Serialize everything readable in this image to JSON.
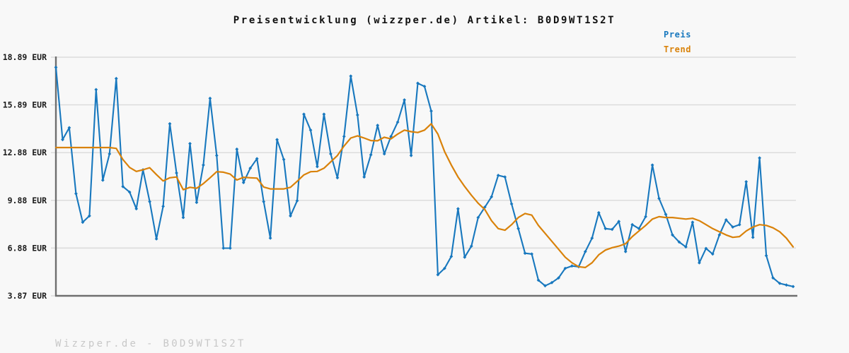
{
  "title": "Preisentwicklung (wizzper.de) Artikel: B0D9WT1S2T",
  "watermark": "Wizzper.de - B0D9WT1S2T",
  "legend": {
    "price_label": "Preis",
    "trend_label": "Trend"
  },
  "colors": {
    "price": "#1878be",
    "trend": "#d9820a",
    "grid": "#dcdcdc",
    "spine": "#6f6f6f",
    "tick_text": "#1a1a1a",
    "title_text": "#111111",
    "watermark_text": "#c8c8c8",
    "background": "#f8f8f8"
  },
  "y_axis": {
    "ticks": [
      {
        "label": "18.89 EUR",
        "value": 18.89
      },
      {
        "label": "15.89 EUR",
        "value": 15.89
      },
      {
        "label": "12.88 EUR",
        "value": 12.88
      },
      {
        "label": "9.88 EUR",
        "value": 9.88
      },
      {
        "label": "6.88 EUR",
        "value": 6.88
      },
      {
        "label": "3.87 EUR",
        "value": 3.87
      }
    ]
  },
  "chart_data": {
    "type": "line",
    "title": "Preisentwicklung (wizzper.de) Artikel: B0D9WT1S2T",
    "xlabel": "",
    "ylabel": "",
    "x_tick_labels": [],
    "x_note": "111 evenly spaced price observations over time; no x-axis tick labels are shown in the figure",
    "ylim": [
      3.87,
      18.89
    ],
    "grid": "horizontal",
    "legend_position": "top-right",
    "series": [
      {
        "name": "Preis",
        "color": "#1878be",
        "marker": "diamond",
        "values": [
          18.25,
          13.7,
          14.45,
          10.3,
          8.5,
          8.9,
          16.85,
          11.15,
          12.8,
          17.55,
          10.75,
          10.4,
          9.35,
          11.8,
          9.8,
          7.45,
          9.5,
          14.7,
          11.6,
          8.8,
          13.45,
          9.75,
          12.1,
          16.3,
          12.7,
          6.87,
          6.87,
          13.1,
          11.0,
          11.9,
          12.5,
          9.8,
          7.5,
          13.7,
          12.45,
          8.9,
          9.85,
          15.3,
          14.3,
          12.0,
          15.3,
          12.8,
          11.3,
          13.9,
          17.7,
          15.25,
          11.35,
          12.75,
          14.6,
          12.8,
          13.9,
          14.8,
          16.2,
          12.7,
          17.25,
          17.05,
          15.5,
          5.2,
          5.6,
          6.35,
          9.35,
          6.3,
          7.0,
          8.8,
          9.45,
          10.1,
          11.45,
          11.35,
          9.65,
          8.1,
          6.55,
          6.5,
          4.85,
          4.5,
          4.7,
          5.0,
          5.6,
          5.75,
          5.7,
          6.65,
          7.5,
          9.1,
          8.1,
          8.05,
          8.55,
          6.65,
          8.35,
          8.1,
          8.85,
          12.1,
          10.0,
          9.0,
          7.7,
          7.25,
          6.95,
          8.5,
          5.95,
          6.85,
          6.5,
          7.7,
          8.65,
          8.2,
          8.35,
          11.05,
          7.55,
          12.55,
          6.4,
          5.0,
          4.65,
          4.55,
          4.45
        ]
      },
      {
        "name": "Trend",
        "color": "#d9820a",
        "marker": "none",
        "values": [
          13.2,
          13.2,
          13.2,
          13.2,
          13.2,
          13.2,
          13.2,
          13.2,
          13.2,
          13.15,
          12.45,
          11.95,
          11.7,
          11.8,
          11.93,
          11.5,
          11.1,
          11.3,
          11.35,
          10.55,
          10.7,
          10.64,
          10.93,
          11.3,
          11.68,
          11.65,
          11.53,
          11.16,
          11.33,
          11.3,
          11.28,
          10.72,
          10.6,
          10.6,
          10.6,
          10.7,
          11.08,
          11.48,
          11.68,
          11.7,
          11.9,
          12.3,
          12.7,
          13.3,
          13.8,
          13.94,
          13.8,
          13.64,
          13.63,
          13.85,
          13.75,
          14.05,
          14.3,
          14.2,
          14.15,
          14.3,
          14.7,
          14.05,
          12.95,
          12.1,
          11.35,
          10.75,
          10.2,
          9.7,
          9.3,
          8.6,
          8.1,
          8.0,
          8.35,
          8.8,
          9.05,
          8.95,
          8.3,
          7.8,
          7.3,
          6.8,
          6.3,
          5.95,
          5.7,
          5.65,
          5.95,
          6.45,
          6.75,
          6.9,
          7.0,
          7.15,
          7.6,
          7.95,
          8.3,
          8.7,
          8.85,
          8.8,
          8.8,
          8.75,
          8.7,
          8.75,
          8.6,
          8.35,
          8.1,
          7.9,
          7.7,
          7.55,
          7.6,
          7.95,
          8.2,
          8.35,
          8.3,
          8.15,
          7.9,
          7.5,
          6.95
        ]
      }
    ]
  }
}
